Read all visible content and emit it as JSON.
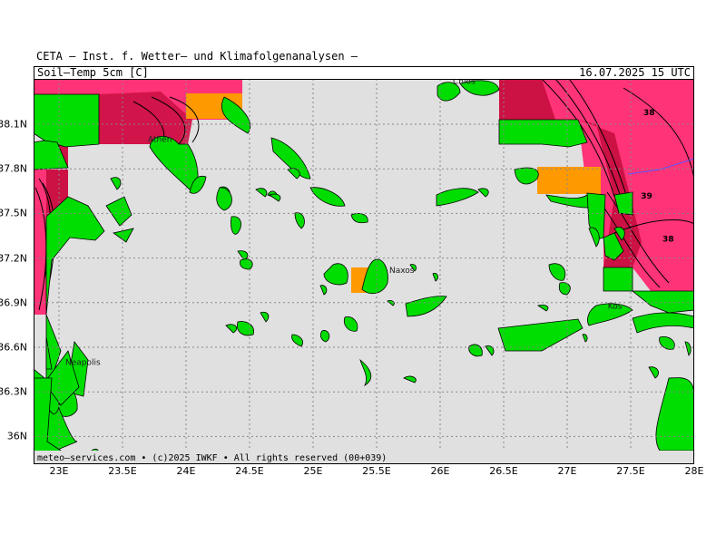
{
  "header": {
    "title": "CETA – Inst. f. Wetter– und Klimafolgenanalysen –",
    "variable": "Soil–Temp 5cm [C]",
    "datetime": "16.07.2025 15 UTC"
  },
  "footer": {
    "copyright": "meteo–services.com • (c)2025 IWKF • All rights reserved (00+039)"
  },
  "axes": {
    "x_ticks": [
      "23E",
      "23.5E",
      "24E",
      "24.5E",
      "25E",
      "25.5E",
      "26E",
      "26.5E",
      "27E",
      "27.5E",
      "28E"
    ],
    "y_ticks": [
      "38.1N",
      "37.8N",
      "37.5N",
      "37.2N",
      "36.9N",
      "36.6N",
      "36.3N",
      "36N"
    ],
    "lon_range": [
      22.8,
      28.0
    ],
    "lat_range": [
      35.8,
      38.3
    ]
  },
  "places": [
    {
      "name": "Chios",
      "lon": 26.1,
      "lat": 38.37
    },
    {
      "name": "Athen",
      "lon": 23.7,
      "lat": 37.98
    },
    {
      "name": "Naxos",
      "lon": 25.6,
      "lat": 37.1
    },
    {
      "name": "Kos",
      "lon": 27.32,
      "lat": 36.86
    },
    {
      "name": "Neapolis",
      "lon": 23.05,
      "lat": 36.48
    }
  ],
  "contour_labels": [
    {
      "value": "38",
      "lon": 27.6,
      "lat": 38.16
    },
    {
      "value": "39",
      "lon": 27.58,
      "lat": 37.6
    },
    {
      "value": "38",
      "lon": 27.75,
      "lat": 37.31
    }
  ],
  "colors": {
    "sea": "#e0e0e0",
    "land": "#00dd00",
    "warm": "#ff9900",
    "hot": "#cc1144",
    "very_hot": "#ff3377",
    "grid": "#888888"
  }
}
